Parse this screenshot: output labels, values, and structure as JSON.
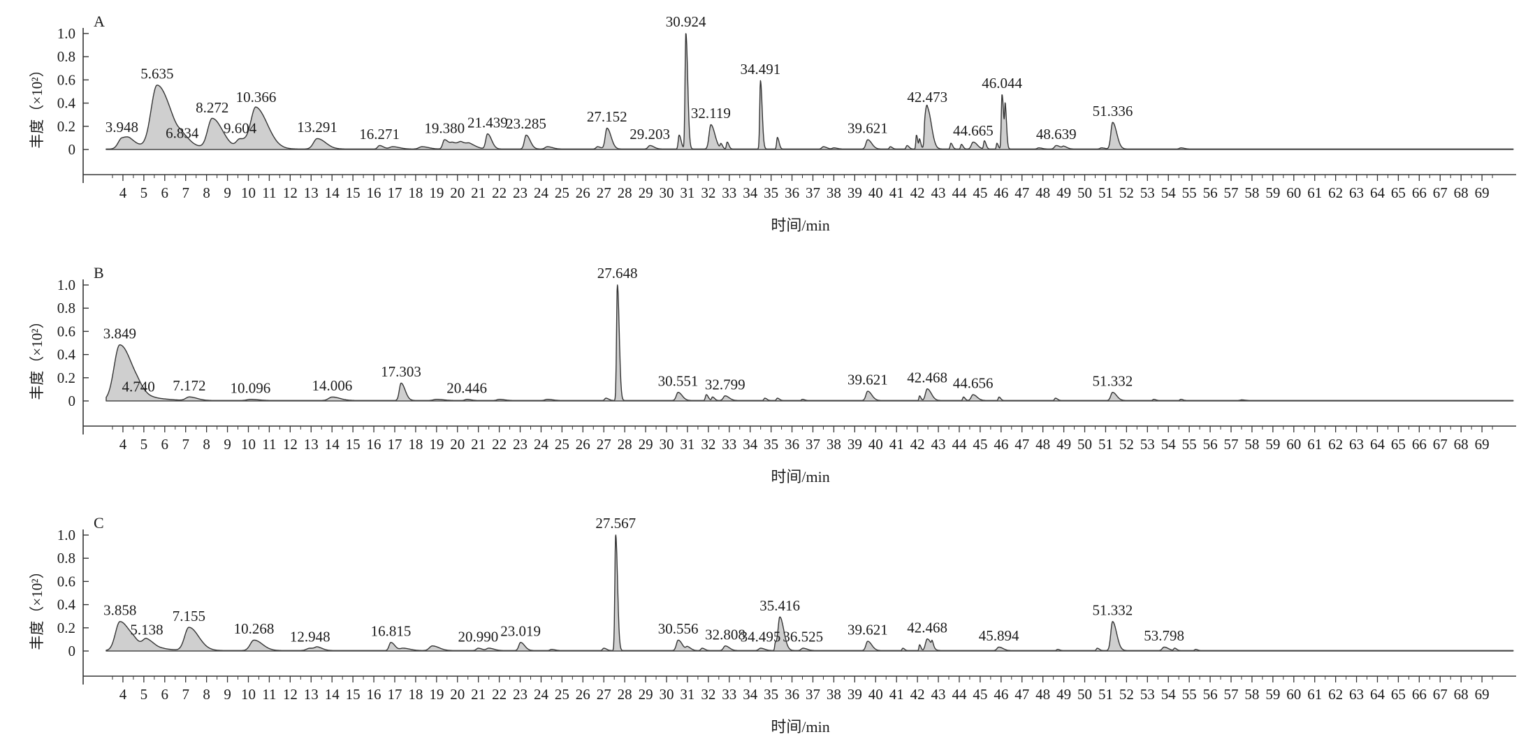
{
  "chart_data": [
    {
      "type": "line",
      "panel_label": "A",
      "xlabel": "时间/min",
      "ylabel": "丰度（×10²）",
      "xlim": [
        3.2,
        70.5
      ],
      "ylim": [
        0,
        1.0
      ],
      "xticks": [
        4,
        5,
        6,
        7,
        8,
        9,
        10,
        11,
        12,
        13,
        14,
        15,
        16,
        17,
        18,
        19,
        20,
        21,
        22,
        23,
        24,
        25,
        26,
        27,
        28,
        29,
        30,
        31,
        32,
        33,
        34,
        35,
        36,
        37,
        38,
        39,
        40,
        41,
        42,
        43,
        44,
        45,
        46,
        47,
        48,
        49,
        50,
        51,
        52,
        53,
        54,
        55,
        56,
        57,
        58,
        59,
        60,
        61,
        62,
        63,
        64,
        65,
        66,
        67,
        68,
        69
      ],
      "yticks": [
        0,
        0.2,
        0.4,
        0.6,
        0.8,
        1.0
      ],
      "labeled_peaks": [
        {
          "rt": "3.948",
          "x": 3.948,
          "y": 0.09
        },
        {
          "rt": "5.635",
          "x": 5.635,
          "y": 0.55
        },
        {
          "rt": "6.834",
          "x": 6.834,
          "y": 0.04
        },
        {
          "rt": "8.272",
          "x": 8.272,
          "y": 0.26
        },
        {
          "rt": "9.604",
          "x": 9.604,
          "y": 0.08
        },
        {
          "rt": "10.366",
          "x": 10.366,
          "y": 0.35
        },
        {
          "rt": "13.291",
          "x": 13.291,
          "y": 0.09
        },
        {
          "rt": "16.271",
          "x": 16.271,
          "y": 0.03
        },
        {
          "rt": "19.380",
          "x": 19.38,
          "y": 0.08
        },
        {
          "rt": "21.439",
          "x": 21.439,
          "y": 0.13
        },
        {
          "rt": "23.285",
          "x": 23.285,
          "y": 0.12
        },
        {
          "rt": "27.152",
          "x": 27.152,
          "y": 0.18
        },
        {
          "rt": "29.203",
          "x": 29.203,
          "y": 0.03
        },
        {
          "rt": "30.924",
          "x": 30.924,
          "y": 1.0
        },
        {
          "rt": "32.119",
          "x": 32.119,
          "y": 0.21
        },
        {
          "rt": "34.491",
          "x": 34.491,
          "y": 0.59
        },
        {
          "rt": "39.621",
          "x": 39.621,
          "y": 0.08
        },
        {
          "rt": "42.473",
          "x": 42.473,
          "y": 0.35
        },
        {
          "rt": "44.665",
          "x": 44.665,
          "y": 0.06
        },
        {
          "rt": "46.044",
          "x": 46.044,
          "y": 0.47
        },
        {
          "rt": "48.639",
          "x": 48.639,
          "y": 0.03
        },
        {
          "rt": "51.336",
          "x": 51.336,
          "y": 0.23
        }
      ],
      "minor_peaks": [
        {
          "x": 4.35,
          "y": 0.04,
          "w": 0.3
        },
        {
          "x": 7.2,
          "y": 0.02,
          "w": 0.4
        },
        {
          "x": 16.9,
          "y": 0.02,
          "w": 0.2
        },
        {
          "x": 18.3,
          "y": 0.02,
          "w": 0.2
        },
        {
          "x": 19.8,
          "y": 0.05,
          "w": 0.2
        },
        {
          "x": 20.2,
          "y": 0.04,
          "w": 0.2
        },
        {
          "x": 20.6,
          "y": 0.03,
          "w": 0.2
        },
        {
          "x": 24.3,
          "y": 0.02,
          "w": 0.15
        },
        {
          "x": 26.7,
          "y": 0.02,
          "w": 0.1
        },
        {
          "x": 30.6,
          "y": 0.12,
          "w": 0.06
        },
        {
          "x": 32.6,
          "y": 0.04,
          "w": 0.05
        },
        {
          "x": 32.9,
          "y": 0.06,
          "w": 0.05
        },
        {
          "x": 35.3,
          "y": 0.1,
          "w": 0.05
        },
        {
          "x": 37.5,
          "y": 0.02,
          "w": 0.1
        },
        {
          "x": 38.0,
          "y": 0.01,
          "w": 0.1
        },
        {
          "x": 40.7,
          "y": 0.02,
          "w": 0.06
        },
        {
          "x": 41.5,
          "y": 0.03,
          "w": 0.06
        },
        {
          "x": 41.95,
          "y": 0.12,
          "w": 0.04
        },
        {
          "x": 42.1,
          "y": 0.08,
          "w": 0.04
        },
        {
          "x": 42.35,
          "y": 0.14,
          "w": 0.04
        },
        {
          "x": 43.6,
          "y": 0.05,
          "w": 0.05
        },
        {
          "x": 44.1,
          "y": 0.04,
          "w": 0.05
        },
        {
          "x": 45.2,
          "y": 0.07,
          "w": 0.05
        },
        {
          "x": 45.8,
          "y": 0.05,
          "w": 0.04
        },
        {
          "x": 46.2,
          "y": 0.33,
          "w": 0.04
        },
        {
          "x": 47.8,
          "y": 0.01,
          "w": 0.1
        },
        {
          "x": 49.0,
          "y": 0.02,
          "w": 0.1
        },
        {
          "x": 50.8,
          "y": 0.01,
          "w": 0.1
        },
        {
          "x": 54.6,
          "y": 0.01,
          "w": 0.1
        }
      ]
    },
    {
      "type": "line",
      "panel_label": "B",
      "xlabel": "时间/min",
      "ylabel": "丰度（×10²）",
      "xlim": [
        3.2,
        70.5
      ],
      "ylim": [
        0,
        1.0
      ],
      "xticks": [
        4,
        5,
        6,
        7,
        8,
        9,
        10,
        11,
        12,
        13,
        14,
        15,
        16,
        17,
        18,
        19,
        20,
        21,
        22,
        23,
        24,
        25,
        26,
        27,
        28,
        29,
        30,
        31,
        32,
        33,
        34,
        35,
        36,
        37,
        38,
        39,
        40,
        41,
        42,
        43,
        44,
        45,
        46,
        47,
        48,
        49,
        50,
        51,
        52,
        53,
        54,
        55,
        56,
        57,
        58,
        59,
        60,
        61,
        62,
        63,
        64,
        65,
        66,
        67,
        68,
        69
      ],
      "yticks": [
        0,
        0.2,
        0.4,
        0.6,
        0.8,
        1.0
      ],
      "labeled_peaks": [
        {
          "rt": "3.849",
          "x": 3.849,
          "y": 0.48
        },
        {
          "rt": "4.740",
          "x": 4.74,
          "y": 0.02
        },
        {
          "rt": "7.172",
          "x": 7.172,
          "y": 0.03
        },
        {
          "rt": "10.096",
          "x": 10.096,
          "y": 0.01
        },
        {
          "rt": "14.006",
          "x": 14.006,
          "y": 0.03
        },
        {
          "rt": "17.303",
          "x": 17.303,
          "y": 0.15
        },
        {
          "rt": "20.446",
          "x": 20.446,
          "y": 0.01
        },
        {
          "rt": "27.648",
          "x": 27.648,
          "y": 1.0
        },
        {
          "rt": "30.551",
          "x": 30.551,
          "y": 0.07
        },
        {
          "rt": "32.799",
          "x": 32.799,
          "y": 0.04
        },
        {
          "rt": "39.621",
          "x": 39.621,
          "y": 0.08
        },
        {
          "rt": "42.468",
          "x": 42.468,
          "y": 0.1
        },
        {
          "rt": "44.656",
          "x": 44.656,
          "y": 0.05
        },
        {
          "rt": "51.332",
          "x": 51.332,
          "y": 0.07
        }
      ],
      "minor_peaks": [
        {
          "x": 5.6,
          "y": 0.015,
          "w": 0.4
        },
        {
          "x": 19.0,
          "y": 0.01,
          "w": 0.2
        },
        {
          "x": 22.0,
          "y": 0.01,
          "w": 0.15
        },
        {
          "x": 24.3,
          "y": 0.01,
          "w": 0.15
        },
        {
          "x": 27.1,
          "y": 0.02,
          "w": 0.08
        },
        {
          "x": 31.9,
          "y": 0.05,
          "w": 0.06
        },
        {
          "x": 32.2,
          "y": 0.03,
          "w": 0.06
        },
        {
          "x": 34.7,
          "y": 0.02,
          "w": 0.06
        },
        {
          "x": 35.3,
          "y": 0.02,
          "w": 0.06
        },
        {
          "x": 36.5,
          "y": 0.01,
          "w": 0.06
        },
        {
          "x": 42.1,
          "y": 0.04,
          "w": 0.04
        },
        {
          "x": 44.2,
          "y": 0.03,
          "w": 0.05
        },
        {
          "x": 45.9,
          "y": 0.03,
          "w": 0.05
        },
        {
          "x": 48.6,
          "y": 0.02,
          "w": 0.06
        },
        {
          "x": 53.3,
          "y": 0.01,
          "w": 0.06
        },
        {
          "x": 54.6,
          "y": 0.01,
          "w": 0.06
        },
        {
          "x": 57.5,
          "y": 0.005,
          "w": 0.1
        }
      ]
    },
    {
      "type": "line",
      "panel_label": "C",
      "xlabel": "时间/min",
      "ylabel": "丰度（×10²）",
      "xlim": [
        3.2,
        70.5
      ],
      "ylim": [
        0,
        1.0
      ],
      "xticks": [
        4,
        5,
        6,
        7,
        8,
        9,
        10,
        11,
        12,
        13,
        14,
        15,
        16,
        17,
        18,
        19,
        20,
        21,
        22,
        23,
        24,
        25,
        26,
        27,
        28,
        29,
        30,
        31,
        32,
        33,
        34,
        35,
        36,
        37,
        38,
        39,
        40,
        41,
        42,
        43,
        44,
        45,
        46,
        47,
        48,
        49,
        50,
        51,
        52,
        53,
        54,
        55,
        56,
        57,
        58,
        59,
        60,
        61,
        62,
        63,
        64,
        65,
        66,
        67,
        68,
        69
      ],
      "yticks": [
        0,
        0.2,
        0.4,
        0.6,
        0.8,
        1.0
      ],
      "labeled_peaks": [
        {
          "rt": "3.858",
          "x": 3.858,
          "y": 0.25
        },
        {
          "rt": "5.138",
          "x": 5.138,
          "y": 0.08
        },
        {
          "rt": "7.155",
          "x": 7.155,
          "y": 0.2
        },
        {
          "rt": "10.268",
          "x": 10.268,
          "y": 0.09
        },
        {
          "rt": "12.948",
          "x": 12.948,
          "y": 0.02
        },
        {
          "rt": "16.815",
          "x": 16.815,
          "y": 0.07
        },
        {
          "rt": "20.990",
          "x": 20.99,
          "y": 0.02
        },
        {
          "rt": "23.019",
          "x": 23.019,
          "y": 0.07
        },
        {
          "rt": "27.567",
          "x": 27.567,
          "y": 1.0
        },
        {
          "rt": "30.556",
          "x": 30.556,
          "y": 0.09
        },
        {
          "rt": "32.808",
          "x": 32.808,
          "y": 0.04
        },
        {
          "rt": "34.495",
          "x": 34.495,
          "y": 0.02
        },
        {
          "rt": "35.416",
          "x": 35.416,
          "y": 0.29
        },
        {
          "rt": "36.525",
          "x": 36.525,
          "y": 0.02
        },
        {
          "rt": "39.621",
          "x": 39.621,
          "y": 0.08
        },
        {
          "rt": "42.468",
          "x": 42.468,
          "y": 0.1
        },
        {
          "rt": "45.894",
          "x": 45.894,
          "y": 0.03
        },
        {
          "rt": "51.332",
          "x": 51.332,
          "y": 0.25
        },
        {
          "rt": "53.798",
          "x": 53.798,
          "y": 0.03
        }
      ],
      "minor_peaks": [
        {
          "x": 4.6,
          "y": 0.03,
          "w": 0.3
        },
        {
          "x": 6.0,
          "y": 0.01,
          "w": 0.3
        },
        {
          "x": 13.3,
          "y": 0.02,
          "w": 0.15
        },
        {
          "x": 17.4,
          "y": 0.02,
          "w": 0.2
        },
        {
          "x": 18.8,
          "y": 0.04,
          "w": 0.2
        },
        {
          "x": 21.5,
          "y": 0.02,
          "w": 0.15
        },
        {
          "x": 24.5,
          "y": 0.01,
          "w": 0.1
        },
        {
          "x": 27.0,
          "y": 0.02,
          "w": 0.08
        },
        {
          "x": 31.0,
          "y": 0.03,
          "w": 0.1
        },
        {
          "x": 31.7,
          "y": 0.02,
          "w": 0.08
        },
        {
          "x": 35.2,
          "y": 0.06,
          "w": 0.04
        },
        {
          "x": 41.3,
          "y": 0.02,
          "w": 0.05
        },
        {
          "x": 42.1,
          "y": 0.05,
          "w": 0.04
        },
        {
          "x": 42.7,
          "y": 0.04,
          "w": 0.04
        },
        {
          "x": 48.7,
          "y": 0.01,
          "w": 0.06
        },
        {
          "x": 50.6,
          "y": 0.02,
          "w": 0.06
        },
        {
          "x": 54.3,
          "y": 0.02,
          "w": 0.06
        },
        {
          "x": 55.3,
          "y": 0.01,
          "w": 0.06
        }
      ]
    }
  ]
}
